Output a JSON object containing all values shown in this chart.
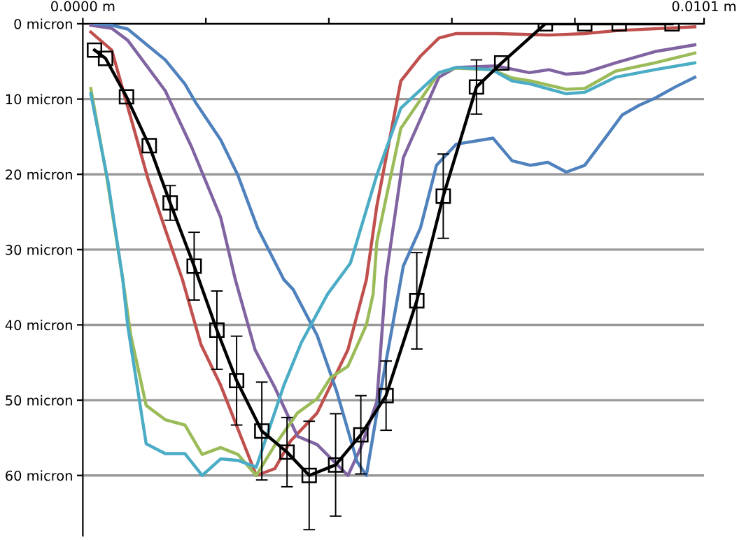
{
  "chart_data": {
    "type": "line",
    "xlim": [
      0,
      0.0101
    ],
    "ylim": [
      68,
      0
    ],
    "xticks": [
      {
        "value": 0,
        "label": "0.0000 m"
      },
      {
        "value": 0.002,
        "label": null
      },
      {
        "value": 0.004,
        "label": null
      },
      {
        "value": 0.006,
        "label": null
      },
      {
        "value": 0.008,
        "label": null
      },
      {
        "value": 0.0101,
        "label": "0.0101 m"
      }
    ],
    "yticks": [
      {
        "value": 0,
        "label": "0 micron"
      },
      {
        "value": 10,
        "label": "10 micron"
      },
      {
        "value": 20,
        "label": "20 micron"
      },
      {
        "value": 30,
        "label": "30 micron"
      },
      {
        "value": 40,
        "label": "40 micron"
      },
      {
        "value": 50,
        "label": "50 micron"
      },
      {
        "value": 60,
        "label": "60 micron"
      }
    ],
    "grid": "y",
    "series": [
      {
        "color": "#c0504d",
        "x": [
          0.00013,
          0.00047,
          0.00106,
          0.00162,
          0.00192,
          0.00224,
          0.00282,
          0.00312,
          0.00338,
          0.00381,
          0.00431,
          0.00461,
          0.00478,
          0.00517,
          0.00549,
          0.00579,
          0.00607,
          0.00672,
          0.00758,
          0.00816,
          0.0087,
          0.00995
        ],
        "values": [
          1.1,
          3.5,
          20.6,
          34.0,
          42.6,
          48.0,
          60.0,
          59.1,
          55.4,
          51.7,
          43.3,
          34.0,
          24.2,
          7.6,
          4.3,
          1.9,
          1.3,
          1.3,
          1.5,
          1.3,
          0.9,
          0.4
        ]
      },
      {
        "color": "#8064a2",
        "x": [
          0.00013,
          0.00047,
          0.00073,
          0.00134,
          0.00177,
          0.00224,
          0.00248,
          0.0028,
          0.00312,
          0.00349,
          0.00381,
          0.00431,
          0.00452,
          0.00478,
          0.00493,
          0.00521,
          0.00579,
          0.00607,
          0.00672,
          0.00726,
          0.00758,
          0.00786,
          0.00816,
          0.00866,
          0.0093,
          0.00995
        ],
        "values": [
          0.2,
          0.6,
          2.2,
          8.9,
          16.4,
          25.7,
          34.0,
          43.3,
          48.3,
          54.8,
          55.9,
          60.0,
          56.3,
          50.2,
          33.6,
          17.8,
          7.1,
          5.8,
          5.6,
          6.5,
          6.1,
          6.7,
          6.5,
          5.2,
          3.7,
          2.8
        ]
      },
      {
        "color": "#4f81bd",
        "x": [
          0.00019,
          0.00047,
          0.00073,
          0.00134,
          0.00166,
          0.00183,
          0.00224,
          0.00252,
          0.00284,
          0.00327,
          0.00342,
          0.00381,
          0.00413,
          0.00446,
          0.00461,
          0.00482,
          0.00521,
          0.00549,
          0.00575,
          0.00607,
          0.00667,
          0.00698,
          0.00728,
          0.00756,
          0.00786,
          0.00816,
          0.00849,
          0.00877,
          0.00905,
          0.0093,
          0.00963,
          0.00995
        ],
        "values": [
          0,
          0.2,
          0.7,
          4.8,
          8.0,
          10.4,
          15.4,
          20.1,
          27.1,
          34.0,
          35.3,
          41.4,
          48.9,
          58.2,
          60.0,
          49.8,
          32.2,
          27.1,
          18.8,
          16.0,
          15.2,
          18.2,
          18.8,
          18.4,
          19.7,
          18.8,
          15.2,
          12.1,
          10.8,
          9.9,
          8.4,
          7.1
        ]
      },
      {
        "color": "#9bbb59",
        "x": [
          0.00013,
          0.00039,
          0.00065,
          0.00078,
          0.00103,
          0.00134,
          0.00166,
          0.00194,
          0.00224,
          0.00252,
          0.00282,
          0.00312,
          0.00349,
          0.00381,
          0.00403,
          0.00431,
          0.00461,
          0.00472,
          0.00478,
          0.00517,
          0.00579,
          0.00607,
          0.00665,
          0.00698,
          0.00728,
          0.00786,
          0.00816,
          0.00866,
          0.0093,
          0.00995
        ],
        "values": [
          8.6,
          20.4,
          34.0,
          41.4,
          50.7,
          52.6,
          53.3,
          57.2,
          56.3,
          57.2,
          60.0,
          56.0,
          51.7,
          49.8,
          47.0,
          45.5,
          40.0,
          35.9,
          29.0,
          13.9,
          6.5,
          5.9,
          6.1,
          7.2,
          7.6,
          8.7,
          8.6,
          6.3,
          5.2,
          3.9
        ]
      },
      {
        "color": "#4bacc6",
        "x": [
          0.00013,
          0.00041,
          0.00065,
          0.00073,
          0.00103,
          0.00134,
          0.00166,
          0.00194,
          0.00224,
          0.00252,
          0.00282,
          0.00327,
          0.00355,
          0.00398,
          0.00435,
          0.00478,
          0.00517,
          0.00579,
          0.00607,
          0.00665,
          0.00698,
          0.00728,
          0.00786,
          0.00816,
          0.00866,
          0.0093,
          0.00995
        ],
        "values": [
          9.3,
          21.0,
          34.0,
          40.1,
          55.8,
          57.1,
          57.1,
          60.0,
          57.8,
          58.0,
          58.9,
          48.0,
          42.4,
          35.9,
          31.8,
          20.1,
          11.2,
          6.5,
          5.8,
          6.1,
          7.6,
          8.0,
          9.3,
          9.1,
          7.1,
          6.1,
          5.2
        ]
      },
      {
        "color": "#000000",
        "marker": "square",
        "x": [
          0.00019,
          0.00037,
          0.00071,
          0.00108,
          0.00142,
          0.00181,
          0.00218,
          0.0025,
          0.00291,
          0.00332,
          0.00368,
          0.00411,
          0.00452,
          0.00493,
          0.00543,
          0.00586,
          0.0064,
          0.00681,
          0.00752,
          0.00816,
          0.00872,
          0.00958
        ],
        "values": [
          3.5,
          4.6,
          9.7,
          16.2,
          23.8,
          32.2,
          40.7,
          47.4,
          54.1,
          56.9,
          60.0,
          58.6,
          54.6,
          49.4,
          36.8,
          22.9,
          8.4,
          5.2,
          0,
          0,
          0,
          0
        ],
        "errors": [
          null,
          null,
          null,
          null,
          2.3,
          4.5,
          5.2,
          5.9,
          6.5,
          4.6,
          7.2,
          6.8,
          5.2,
          4.6,
          6.4,
          5.6,
          3.6,
          null,
          null,
          null,
          null,
          null
        ]
      }
    ]
  }
}
